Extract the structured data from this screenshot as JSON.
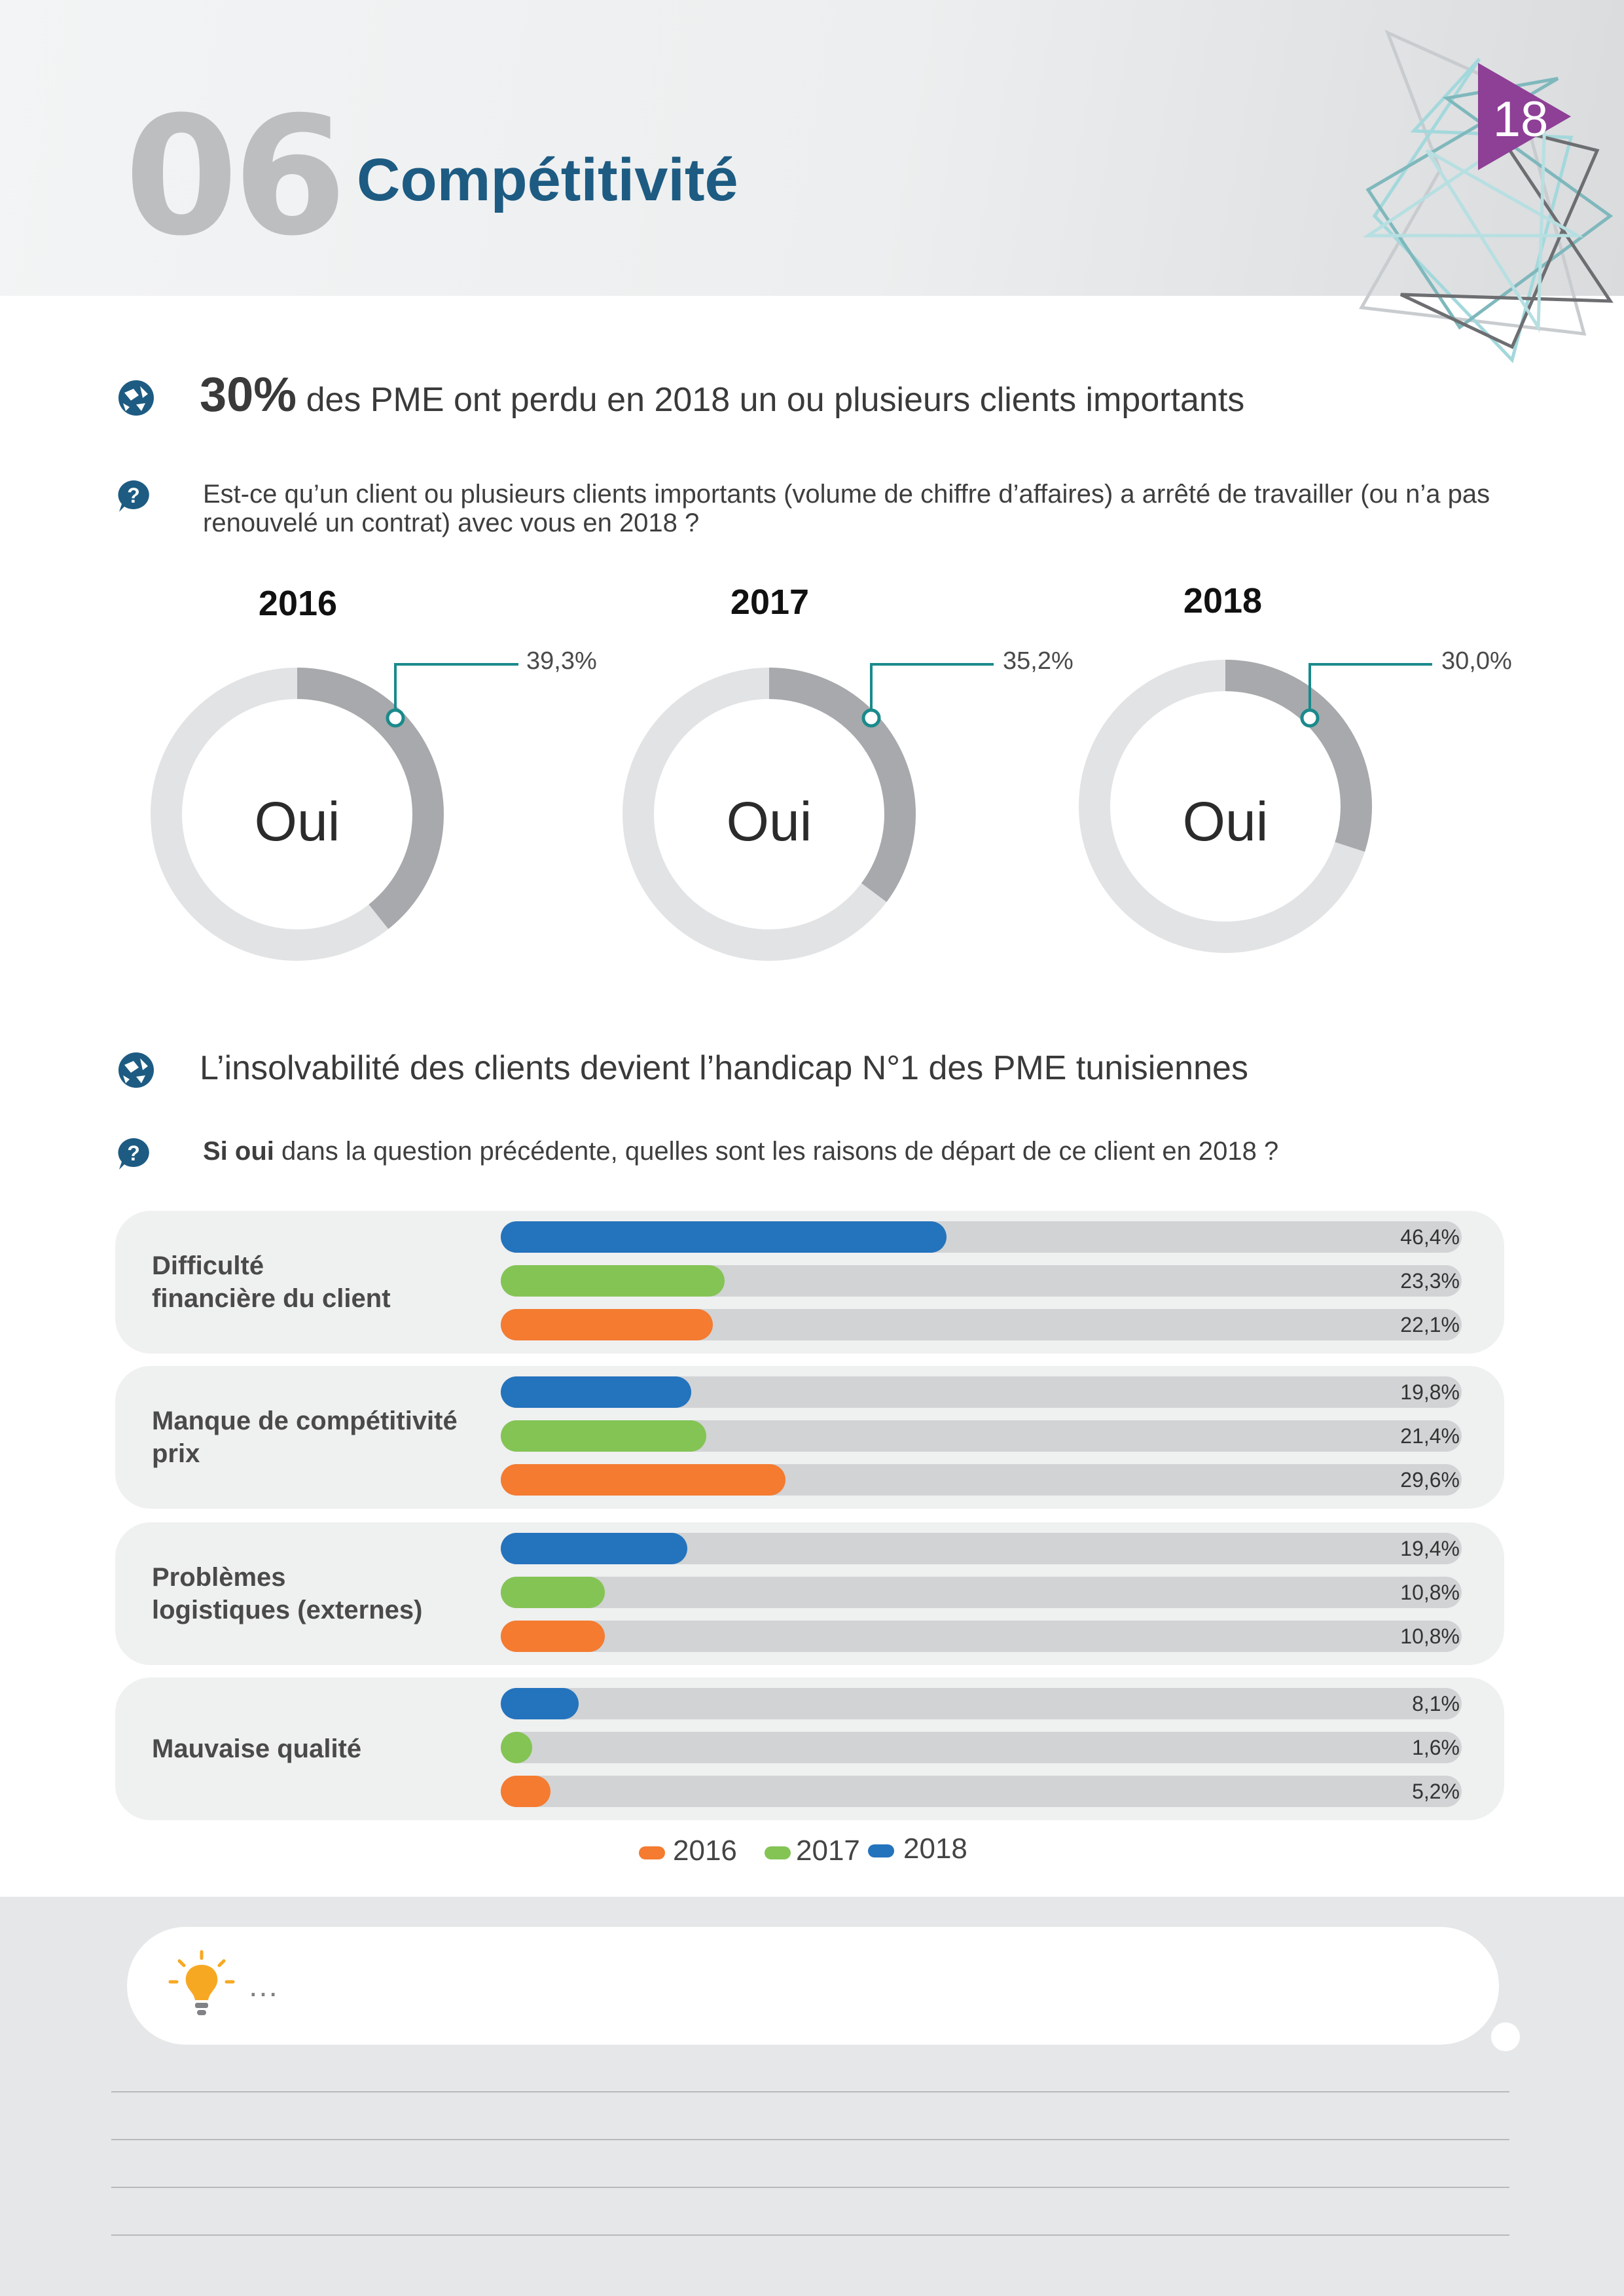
{
  "header": {
    "chapter_number": "06",
    "chapter_title": "Compétitivité",
    "page_number": "18"
  },
  "section1": {
    "title_highlight": "30%",
    "title_rest": "des PME ont perdu en 2018 un ou plusieurs clients importants",
    "question_line1": "Est-ce qu’un client ou plusieurs clients importants (volume de chiffre d’affaires) a arrêté de travailler (ou n’a pas",
    "question_line2": "renouvelé un contrat) avec vous en 2018 ?"
  },
  "donuts": [
    {
      "year": "2016",
      "value_label": "39,3%",
      "value": 39.3,
      "center_label": "Oui"
    },
    {
      "year": "2017",
      "value_label": "35,2%",
      "value": 35.2,
      "center_label": "Oui"
    },
    {
      "year": "2018",
      "value_label": "30,0%",
      "value": 30.0,
      "center_label": "Oui"
    }
  ],
  "section2": {
    "title": "L’insolvabilité des clients devient l’handicap N°1 des PME tunisiennes",
    "question_bold": "Si oui",
    "question_rest": "dans la question précédente, quelles sont les raisons de départ de ce client en 2018 ?"
  },
  "chart_data": {
    "type": "bar",
    "orientation": "horizontal",
    "categories": [
      "Difficulté\nfinancière du client",
      "Manque de compétitivité\nprix",
      "Problèmes\nlogistiques (externes)",
      "Mauvaise qualité"
    ],
    "series": [
      {
        "name": "2018",
        "color": "#2473bd",
        "values": [
          46.4,
          19.8,
          19.4,
          8.1
        ],
        "labels": [
          "46,4%",
          "19,8%",
          "19,4%",
          "8,1%"
        ]
      },
      {
        "name": "2017",
        "color": "#84c455",
        "values": [
          23.3,
          21.4,
          10.8,
          1.6
        ],
        "labels": [
          "23,3%",
          "21,4%",
          "10,8%",
          "1,6%"
        ]
      },
      {
        "name": "2016",
        "color": "#f47b30",
        "values": [
          22.1,
          29.6,
          10.8,
          5.2
        ],
        "labels": [
          "22,1%",
          "29,6%",
          "10,8%",
          "5,2%"
        ]
      }
    ],
    "xlim": [
      0,
      100
    ],
    "legend": [
      "2016",
      "2017",
      "2018"
    ],
    "legend_position": "bottom"
  },
  "footer": {
    "note_text": "…"
  },
  "colors": {
    "title_blue": "#1d5b82",
    "icon_blue": "#1d5b82",
    "page_tag_purple": "#8e3f96",
    "donut_track": "#e1e3e5",
    "donut_value": "#a7a9ac",
    "leader_teal": "#1a8a8c",
    "bulb_orange": "#f7a823"
  }
}
